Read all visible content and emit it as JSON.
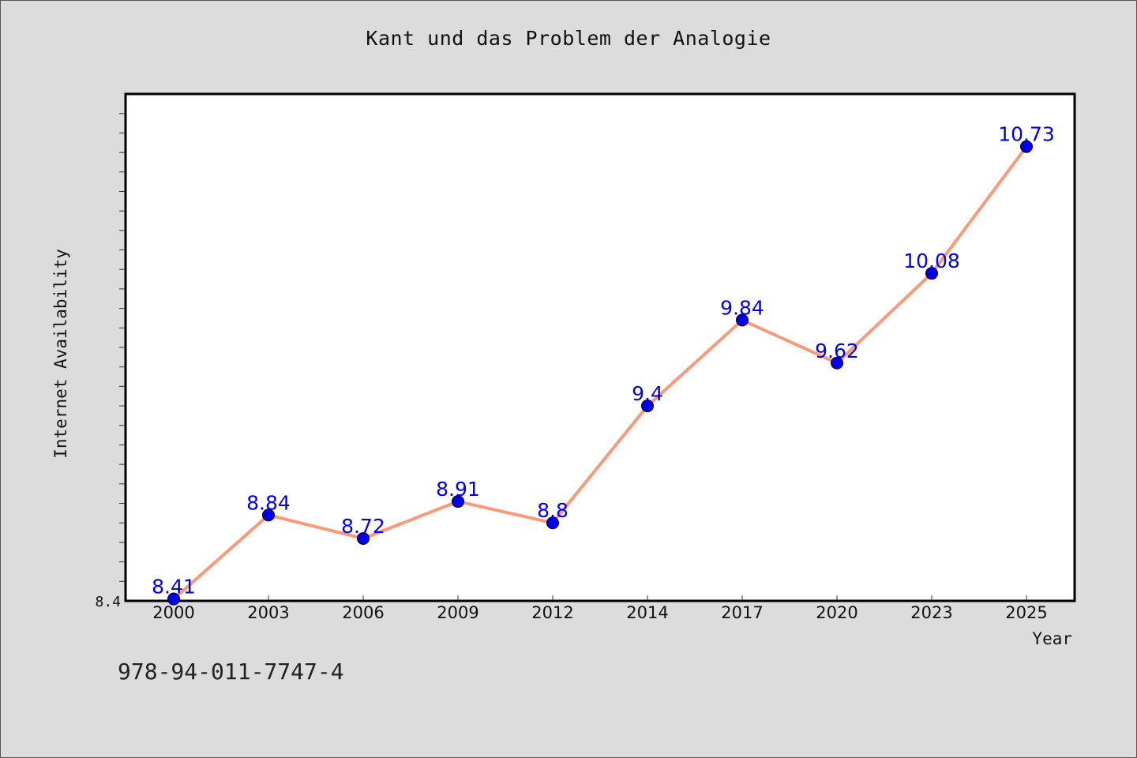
{
  "page": {
    "background": "#dcdcdc",
    "caption": "978-94-011-7747-4"
  },
  "chart_data": {
    "type": "line",
    "title": "Kant und das Problem der Analogie",
    "xlabel": "Year",
    "ylabel": "Internet Availability",
    "categories": [
      "2000",
      "2003",
      "2006",
      "2009",
      "2012",
      "2014",
      "2017",
      "2020",
      "2023",
      "2025"
    ],
    "series": [
      {
        "values": [
          8.41,
          8.84,
          8.72,
          8.91,
          8.8,
          9.4,
          9.84,
          9.62,
          10.08,
          10.73
        ],
        "data_labels": [
          "8.41",
          "8.84",
          "8.72",
          "8.91",
          "8.8",
          "9.4",
          "9.84",
          "9.62",
          "10.08",
          "10.73"
        ],
        "line_color": "#fa9a78",
        "marker_color": "#0000ee"
      }
    ],
    "y_tick_labels": [
      "8.4"
    ],
    "ylim": [
      8.4,
      11.0
    ],
    "y_minor_tick_step": 0.1,
    "grid": false,
    "legend": "none",
    "plot_background": "#ffffff"
  }
}
